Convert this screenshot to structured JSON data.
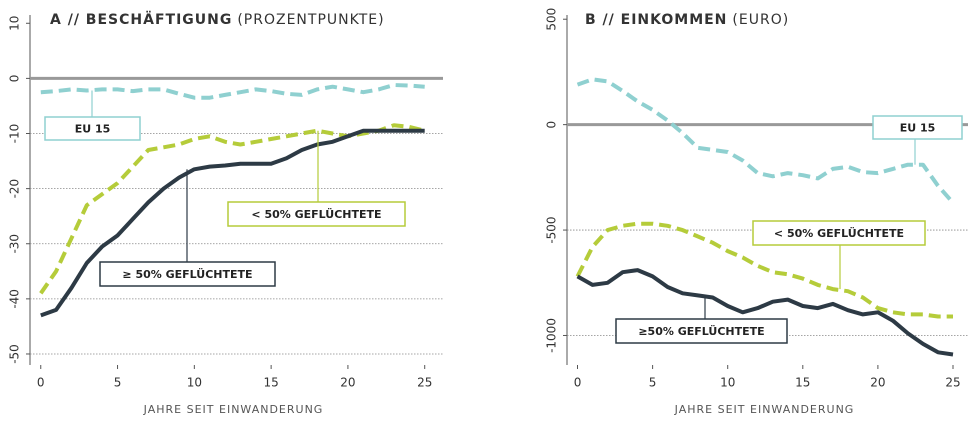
{
  "chart_data": [
    {
      "type": "line",
      "title": "A // BESCHÄFTIGUNG",
      "unit": "(PROZENTPUNKTE)",
      "xlabel": "JAHRE SEIT EINWANDERUNG",
      "x": [
        0,
        1,
        2,
        3,
        4,
        5,
        6,
        7,
        8,
        9,
        10,
        11,
        12,
        13,
        14,
        15,
        16,
        17,
        18,
        19,
        20,
        21,
        22,
        23,
        24,
        25
      ],
      "xlim": [
        -0.7,
        25.8
      ],
      "xticks": [
        0,
        5,
        10,
        15,
        20,
        25
      ],
      "ylim": [
        -52,
        11.5
      ],
      "yticks": [
        -50,
        -40,
        -30,
        -20,
        -10,
        0,
        10
      ],
      "grid": true,
      "series": [
        {
          "name": "EU 15",
          "color": "#8fd0d0",
          "dash": true,
          "values": [
            -2.5,
            -2.3,
            -2,
            -2.2,
            -2,
            -2,
            -2.3,
            -2,
            -2,
            -2.8,
            -3.5,
            -3.5,
            -3,
            -2.5,
            -2,
            -2.3,
            -2.8,
            -3,
            -2,
            -1.5,
            -2,
            -2.5,
            -2,
            -1.2,
            -1.3,
            -1.5
          ]
        },
        {
          "name": "< 50% GEFLÜCHTETE",
          "color": "#b5cc3a",
          "dash": true,
          "values": [
            -39,
            -35,
            -29,
            -23,
            -21,
            -19,
            -16,
            -13,
            -12.5,
            -12,
            -11,
            -10.5,
            -11.5,
            -12,
            -11.5,
            -11,
            -10.5,
            -10,
            -9.5,
            -10,
            -10.5,
            -10,
            -9.5,
            -8.5,
            -8.8,
            -9.5
          ]
        },
        {
          "name": "≥ 50% GEFLÜCHTETE",
          "color": "#2d3a45",
          "dash": false,
          "values": [
            -43,
            -42,
            -38,
            -33.5,
            -30.5,
            -28.5,
            -25.5,
            -22.5,
            -20,
            -18,
            -16.5,
            -16,
            -15.8,
            -15.5,
            -15.5,
            -15.5,
            -14.5,
            -13,
            -12,
            -11.5,
            -10.5,
            -9.5,
            -9.5,
            -9.5,
            -9.5,
            -9.5
          ]
        }
      ]
    },
    {
      "type": "line",
      "title": "B // EINKOMMEN",
      "unit": "(EURO)",
      "xlabel": "JAHRE SEIT EINWANDERUNG",
      "x": [
        0,
        1,
        2,
        3,
        4,
        5,
        6,
        7,
        8,
        9,
        10,
        11,
        12,
        13,
        14,
        15,
        16,
        17,
        18,
        19,
        20,
        21,
        22,
        23,
        24,
        25
      ],
      "xlim": [
        -0.7,
        25.6
      ],
      "xticks": [
        0,
        5,
        10,
        15,
        20,
        25
      ],
      "ylim": [
        -1140,
        520
      ],
      "yticks": [
        -1000,
        -500,
        0,
        500
      ],
      "grid": true,
      "series": [
        {
          "name": "EU 15",
          "color": "#8fd0d0",
          "dash": true,
          "values": [
            190,
            215,
            205,
            160,
            110,
            70,
            20,
            -40,
            -110,
            -120,
            -130,
            -170,
            -230,
            -245,
            -230,
            -240,
            -255,
            -210,
            -200,
            -225,
            -230,
            -210,
            -190,
            -190,
            -290,
            -370
          ]
        },
        {
          "name": "< 50% GEFLÜCHTETE",
          "color": "#b5cc3a",
          "dash": true,
          "values": [
            -720,
            -580,
            -500,
            -480,
            -470,
            -470,
            -480,
            -500,
            -530,
            -560,
            -600,
            -630,
            -670,
            -700,
            -710,
            -730,
            -760,
            -780,
            -790,
            -820,
            -870,
            -890,
            -900,
            -900,
            -910,
            -910
          ]
        },
        {
          "name": "≥50% GEFLÜCHTETE",
          "color": "#2d3a45",
          "dash": false,
          "values": [
            -720,
            -760,
            -750,
            -700,
            -690,
            -720,
            -770,
            -800,
            -810,
            -820,
            -860,
            -890,
            -870,
            -840,
            -830,
            -860,
            -870,
            -850,
            -880,
            -900,
            -890,
            -930,
            -990,
            -1040,
            -1080,
            -1090
          ]
        }
      ]
    }
  ]
}
